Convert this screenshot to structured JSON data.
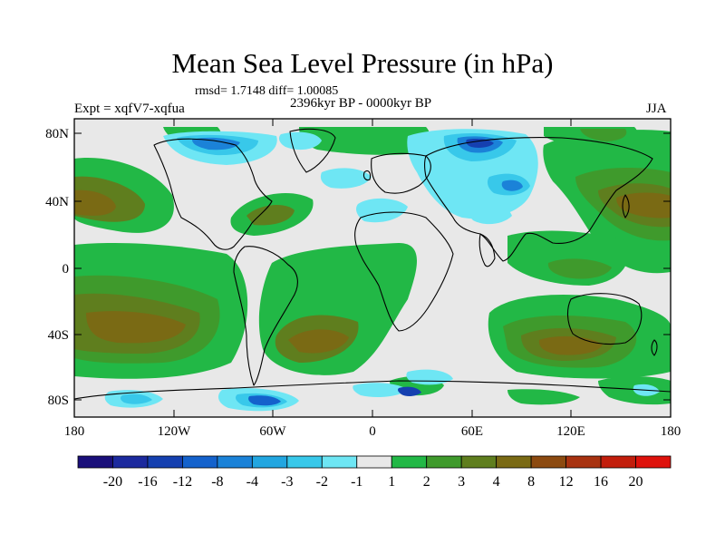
{
  "figure": {
    "title": "Mean Sea Level Pressure (in hPa)",
    "stats_line": "rmsd= 1.7148 diff= 1.00085",
    "period": "2396kyr BP - 0000kyr BP",
    "experiment": "Expt = xqfV7-xqfua",
    "season": "JJA"
  },
  "axes": {
    "lat_labels": [
      "80N",
      "40N",
      "0",
      "40S",
      "80S"
    ],
    "lon_labels": [
      "180",
      "120W",
      "60W",
      "0",
      "60E",
      "120E",
      "180"
    ]
  },
  "legend": {
    "labels": [
      "-20",
      "-16",
      "-12",
      "-8",
      "-4",
      "-3",
      "-2",
      "-1",
      "1",
      "2",
      "3",
      "4",
      "8",
      "12",
      "16",
      "20"
    ],
    "colors": [
      "#1a0f7a",
      "#1c2a9e",
      "#1540b0",
      "#1462cc",
      "#1b82d8",
      "#22a6e0",
      "#38c8ea",
      "#6ee6f4",
      "#e8e8e8",
      "#22b846",
      "#3f9a2c",
      "#5f7e1e",
      "#7a6a14",
      "#8c4a10",
      "#a83210",
      "#c21e0c",
      "#de120c"
    ]
  }
}
